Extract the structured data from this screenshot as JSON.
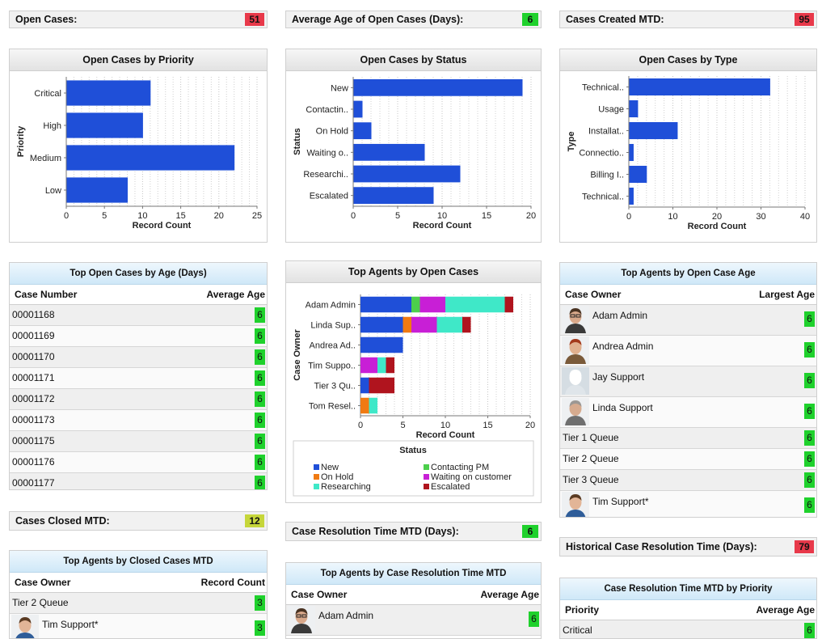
{
  "metrics": {
    "open_cases": {
      "label": "Open Cases:",
      "value": "51",
      "color": "#e8394a"
    },
    "avg_age": {
      "label": "Average Age of Open Cases (Days):",
      "value": "6",
      "color": "#1fd12c"
    },
    "created_mtd": {
      "label": "Cases Created MTD:",
      "value": "95",
      "color": "#e8394a"
    },
    "closed_mtd": {
      "label": "Cases Closed MTD:",
      "value": "12",
      "color": "#c6d63a"
    },
    "resolution_mtd": {
      "label": "Case Resolution Time MTD (Days):",
      "value": "6",
      "color": "#1fd12c"
    },
    "historical_resolution": {
      "label": "Historical Case Resolution Time (Days):",
      "value": "79",
      "color": "#e8394a"
    }
  },
  "chart_data": [
    {
      "type": "bar",
      "orientation": "horizontal",
      "title": "Open Cases by Priority",
      "xlabel": "Record Count",
      "ylabel": "Priority",
      "categories": [
        "Critical",
        "High",
        "Medium",
        "Low"
      ],
      "values": [
        11,
        10,
        22,
        8
      ],
      "xlim": [
        0,
        25
      ],
      "xticks": [
        "0",
        "5",
        "10",
        "15",
        "20",
        "25"
      ],
      "bar_color": "#1f4fd8",
      "grid": "vertical dotted"
    },
    {
      "type": "bar",
      "orientation": "horizontal",
      "title": "Open Cases by Status",
      "xlabel": "Record Count",
      "ylabel": "Status",
      "categories": [
        "New",
        "Contactin..",
        "On Hold",
        "Waiting o..",
        "Researchi..",
        "Escalated"
      ],
      "values": [
        19,
        1,
        2,
        8,
        12,
        9
      ],
      "xlim": [
        0,
        20
      ],
      "xticks": [
        "0",
        "5",
        "10",
        "15",
        "20"
      ],
      "bar_color": "#1f4fd8",
      "grid": "vertical dotted"
    },
    {
      "type": "bar",
      "orientation": "horizontal",
      "title": "Open Cases by Type",
      "xlabel": "Record Count",
      "ylabel": "Type",
      "categories": [
        "Technical..",
        "Usage",
        "Installat..",
        "Connectio..",
        "Billing I..",
        "Technical.."
      ],
      "values": [
        32,
        2,
        11,
        1,
        4,
        1
      ],
      "xlim": [
        0,
        40
      ],
      "xticks": [
        "0",
        "10",
        "20",
        "30",
        "40"
      ],
      "bar_color": "#1f4fd8",
      "grid": "vertical dotted"
    },
    {
      "type": "bar",
      "orientation": "horizontal",
      "stacked": true,
      "title": "Top Agents by Open Cases",
      "xlabel": "Record Count",
      "ylabel": "Case Owner",
      "categories": [
        "Adam Admin",
        "Linda Sup..",
        "Andrea Ad..",
        "Tim Suppo..",
        "Tier 3 Qu..",
        "Tom Resel.."
      ],
      "xlim": [
        0,
        20
      ],
      "xticks": [
        "0",
        "5",
        "10",
        "15",
        "20"
      ],
      "legend_title": "Status",
      "legend_placement": "bottom",
      "series": [
        {
          "name": "New",
          "color": "#1f4fd8",
          "values": [
            6,
            5,
            5,
            0,
            1,
            0
          ]
        },
        {
          "name": "Contacting PM",
          "color": "#4ccf4c",
          "values": [
            1,
            0,
            0,
            0,
            0,
            0
          ]
        },
        {
          "name": "On Hold",
          "color": "#f07a12",
          "values": [
            0,
            1,
            0,
            0,
            0,
            1
          ]
        },
        {
          "name": "Waiting on customer",
          "color": "#c81fd6",
          "values": [
            3,
            3,
            0,
            2,
            0,
            0
          ]
        },
        {
          "name": "Researching",
          "color": "#3fe8c8",
          "values": [
            7,
            3,
            0,
            1,
            0,
            1
          ]
        },
        {
          "name": "Escalated",
          "color": "#b0141e",
          "values": [
            1,
            1,
            0,
            1,
            3,
            0
          ]
        }
      ]
    }
  ],
  "tables": {
    "open_by_age": {
      "title": "Top Open Cases by Age (Days)",
      "col1": "Case Number",
      "col2": "Average Age",
      "rows": [
        {
          "name": "00001168",
          "value": "6"
        },
        {
          "name": "00001169",
          "value": "6"
        },
        {
          "name": "00001170",
          "value": "6"
        },
        {
          "name": "00001171",
          "value": "6"
        },
        {
          "name": "00001172",
          "value": "6"
        },
        {
          "name": "00001173",
          "value": "6"
        },
        {
          "name": "00001175",
          "value": "6"
        },
        {
          "name": "00001176",
          "value": "6"
        },
        {
          "name": "00001177",
          "value": "6"
        }
      ]
    },
    "open_case_age": {
      "title": "Top Agents by Open Case Age",
      "col1": "Case Owner",
      "col2": "Largest Age",
      "rows": [
        {
          "name": "Adam Admin",
          "value": "6",
          "avatar": "man-glasses-avatar-icon"
        },
        {
          "name": "Andrea Admin",
          "value": "6",
          "avatar": "woman-red-hair-avatar-icon"
        },
        {
          "name": "Jay Support",
          "value": "6",
          "avatar": "default-silhouette-avatar-icon"
        },
        {
          "name": "Linda Support",
          "value": "6",
          "avatar": "woman-gray-hair-avatar-icon"
        },
        {
          "name": "Tier 1 Queue",
          "value": "6"
        },
        {
          "name": "Tier 2 Queue",
          "value": "6"
        },
        {
          "name": "Tier 3 Queue",
          "value": "6"
        },
        {
          "name": "Tim Support*",
          "value": "6",
          "avatar": "man-standing-avatar-icon"
        }
      ]
    },
    "closed_mtd": {
      "title": "Top Agents by Closed Cases MTD",
      "col1": "Case Owner",
      "col2": "Record Count",
      "rows": [
        {
          "name": "Tier 2 Queue",
          "value": "3"
        },
        {
          "name": "Tim Support*",
          "value": "3",
          "avatar": "man-standing-avatar-icon"
        }
      ]
    },
    "resolution_mtd": {
      "title": "Top Agents by Case Resolution Time MTD",
      "col1": "Case Owner",
      "col2": "Average Age",
      "rows": [
        {
          "name": "Adam Admin",
          "value": "6",
          "avatar": "man-glasses-avatar-icon"
        }
      ]
    },
    "resolution_priority": {
      "title": "Case Resolution Time MTD by Priority",
      "col1": "Priority",
      "col2": "Average Age",
      "rows": [
        {
          "name": "Critical",
          "value": "6"
        }
      ]
    }
  }
}
